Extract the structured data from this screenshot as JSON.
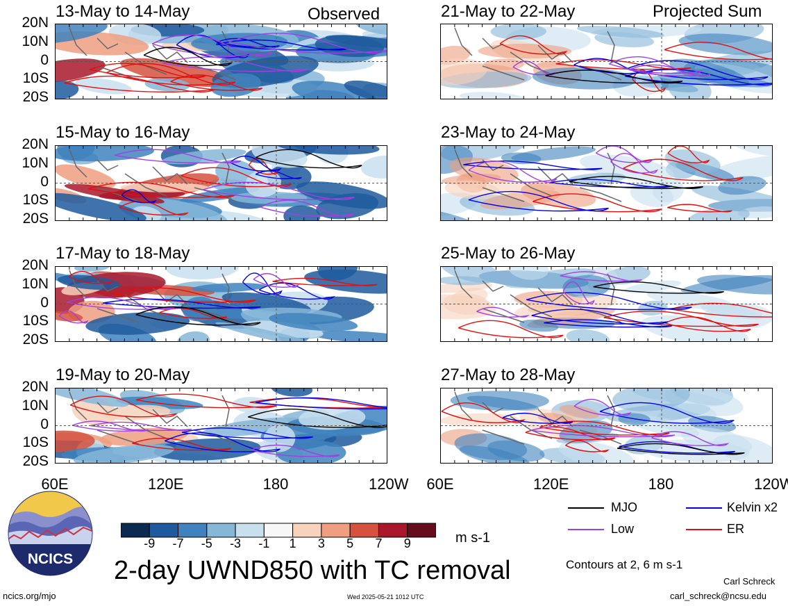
{
  "header": {
    "left_label": "Observed",
    "right_label": "Projected Sum"
  },
  "chart_data": {
    "type": "heatmap",
    "variable_title": "2-day UWND850 with TC removal",
    "units": "m s-1",
    "lat_ticks": [
      "20N",
      "10N",
      "0",
      "10S",
      "20S"
    ],
    "lon_ticks": [
      "60E",
      "120E",
      "180",
      "120W"
    ],
    "colorbar": {
      "ticks": [
        "-9",
        "-7",
        "-5",
        "-3",
        "-1",
        "1",
        "3",
        "5",
        "7",
        "9"
      ],
      "colors": [
        "#0a2a52",
        "#1f5a9e",
        "#3f82bd",
        "#86b6d8",
        "#c8dfee",
        "#f7f7f7",
        "#f7d2bd",
        "#ef9f80",
        "#d5523f",
        "#a8182a",
        "#650d1c"
      ]
    },
    "columns": [
      {
        "label": "Observed",
        "panels": [
          {
            "title": "13-May to 14-May"
          },
          {
            "title": "15-May to 16-May"
          },
          {
            "title": "17-May to 18-May"
          },
          {
            "title": "19-May to 20-May"
          }
        ]
      },
      {
        "label": "Projected Sum",
        "panels": [
          {
            "title": "21-May to 22-May"
          },
          {
            "title": "23-May to 24-May"
          },
          {
            "title": "25-May to 26-May"
          },
          {
            "title": "27-May to 28-May"
          }
        ]
      }
    ],
    "legend": [
      {
        "name": "MJO",
        "color": "#000000"
      },
      {
        "name": "Kelvin x2",
        "color": "#0000e0"
      },
      {
        "name": "Low",
        "color": "#a040e0"
      },
      {
        "name": "ER",
        "color": "#e01010"
      }
    ],
    "contour_note": "Contours at 2, 6 m s-1"
  },
  "footer": {
    "logo_text": "NCICS",
    "url": "ncics.org/mjo",
    "timestamp": "Wed 2025-05-21 1012 UTC",
    "author": "Carl Schreck",
    "email": "carl_schreck@ncsu.edu"
  }
}
